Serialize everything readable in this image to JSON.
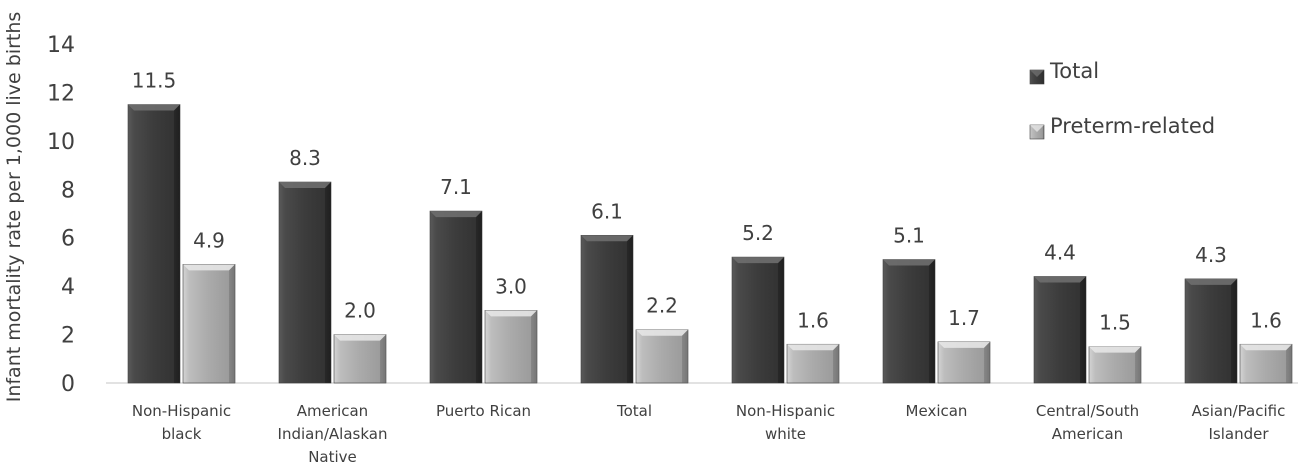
{
  "chart_data": {
    "type": "bar",
    "title": "",
    "xlabel": "",
    "ylabel": "Infant mortality rate per 1,000 live births",
    "ylim": [
      0,
      14
    ],
    "yticks": [
      0,
      2,
      4,
      6,
      8,
      10,
      12,
      14
    ],
    "grid": false,
    "legend_position": "top-right",
    "categories": [
      [
        "Non-Hispanic",
        "black"
      ],
      [
        "American",
        "Indian/Alaskan",
        "Native"
      ],
      [
        "Puerto Rican"
      ],
      [
        "Total"
      ],
      [
        "Non-Hispanic",
        "white"
      ],
      [
        "Mexican"
      ],
      [
        "Central/South",
        "American"
      ],
      [
        "Asian/Pacific",
        "Islander"
      ]
    ],
    "series": [
      {
        "name": "Total",
        "color": "#3f3f3f",
        "values": [
          11.5,
          8.3,
          7.1,
          6.1,
          5.2,
          5.1,
          4.4,
          4.3
        ],
        "labels": [
          "11.5",
          "8.3",
          "7.1",
          "6.1",
          "5.2",
          "5.1",
          "4.4",
          "4.3"
        ]
      },
      {
        "name": "Preterm-related",
        "color": "#a6a6a6",
        "values": [
          4.9,
          2.0,
          3.0,
          2.2,
          1.6,
          1.7,
          1.5,
          1.6
        ],
        "labels": [
          "4.9",
          "2.0",
          "3.0",
          "2.2",
          "1.6",
          "1.7",
          "1.5",
          "1.6"
        ]
      }
    ]
  }
}
